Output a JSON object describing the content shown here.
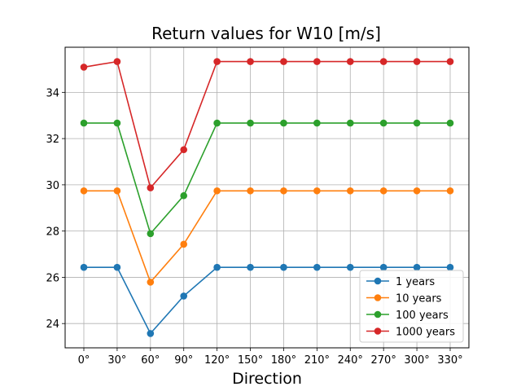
{
  "chart_data": {
    "type": "line",
    "title": "Return values for W10 [m/s]",
    "xlabel": "Direction",
    "ylabel": "",
    "categories": [
      "0°",
      "30°",
      "60°",
      "90°",
      "120°",
      "150°",
      "180°",
      "210°",
      "240°",
      "270°",
      "300°",
      "330°"
    ],
    "yticks": [
      24,
      26,
      28,
      30,
      32,
      34
    ],
    "ylim": [
      22.95,
      35.95
    ],
    "grid": true,
    "legend_position": "lower-right",
    "series": [
      {
        "name": "1 years",
        "color": "#1f77b4",
        "values": [
          26.43,
          26.43,
          23.57,
          25.19,
          26.43,
          26.43,
          26.43,
          26.43,
          26.43,
          26.43,
          26.43,
          26.43
        ]
      },
      {
        "name": "10 years",
        "color": "#ff7f0e",
        "values": [
          29.74,
          29.74,
          25.79,
          27.43,
          29.74,
          29.74,
          29.74,
          29.74,
          29.74,
          29.74,
          29.74,
          29.74
        ]
      },
      {
        "name": "100 years",
        "color": "#2ca02c",
        "values": [
          32.67,
          32.67,
          27.89,
          29.53,
          32.67,
          32.67,
          32.67,
          32.67,
          32.67,
          32.67,
          32.67,
          32.67
        ]
      },
      {
        "name": "1000 years",
        "color": "#d62728",
        "values": [
          35.09,
          35.33,
          29.87,
          31.52,
          35.33,
          35.33,
          35.33,
          35.33,
          35.33,
          35.33,
          35.33,
          35.33
        ]
      }
    ]
  }
}
